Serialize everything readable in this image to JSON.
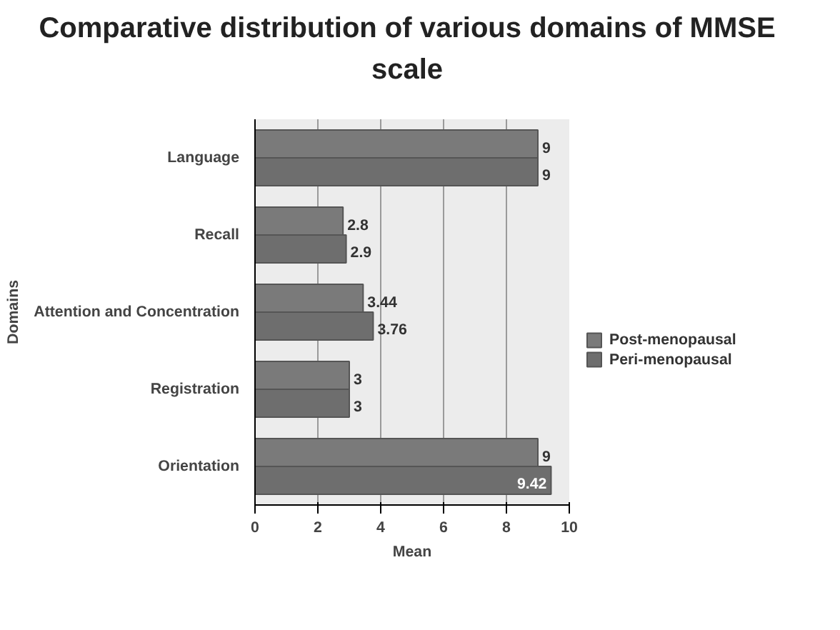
{
  "chart_data": {
    "type": "bar",
    "orientation": "horizontal",
    "title": "Comparative distribution of various domains of MMSE scale",
    "xlabel": "Mean",
    "ylabel": "Domains",
    "categories": [
      "Language",
      "Recall",
      "Attention and Concentration",
      "Registration",
      "Orientation"
    ],
    "series": [
      {
        "name": "Post-menopausal",
        "color": "#7a7a7a",
        "values": [
          9,
          2.8,
          3.44,
          3,
          9
        ]
      },
      {
        "name": "Peri-menopausal",
        "color": "#6e6e6e",
        "values": [
          9,
          2.9,
          3.76,
          3,
          9.42
        ]
      }
    ],
    "xlim": [
      0,
      10
    ],
    "xticks": [
      0,
      2,
      4,
      6,
      8,
      10
    ],
    "grid": "x",
    "legend": "right",
    "data_labels": true
  }
}
